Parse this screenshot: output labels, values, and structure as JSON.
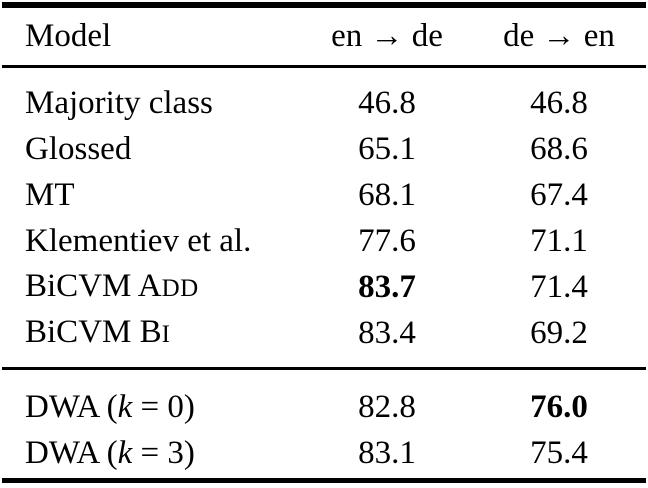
{
  "colors": {
    "background": "#ffffff",
    "text": "#000000",
    "rule": "#000000"
  },
  "table": {
    "columns": [
      "Model",
      "en → de",
      "de → en"
    ],
    "sections": [
      {
        "name": "baselines",
        "rows": [
          {
            "model": [
              {
                "text": "Majority class"
              }
            ],
            "cells": [
              {
                "text": "46.8",
                "bold": false
              },
              {
                "text": "46.8",
                "bold": false
              }
            ]
          },
          {
            "model": [
              {
                "text": "Glossed"
              }
            ],
            "cells": [
              {
                "text": "65.1",
                "bold": false
              },
              {
                "text": "68.6",
                "bold": false
              }
            ]
          },
          {
            "model": [
              {
                "text": "MT"
              }
            ],
            "cells": [
              {
                "text": "68.1",
                "bold": false
              },
              {
                "text": "67.4",
                "bold": false
              }
            ]
          },
          {
            "model": [
              {
                "text": "Klementiev et al."
              }
            ],
            "cells": [
              {
                "text": "77.6",
                "bold": false
              },
              {
                "text": "71.1",
                "bold": false
              }
            ]
          },
          {
            "model": [
              {
                "text": "BiCVM A"
              },
              {
                "text": "DD",
                "style": "smallcaps"
              }
            ],
            "cells": [
              {
                "text": "83.7",
                "bold": true
              },
              {
                "text": "71.4",
                "bold": false
              }
            ]
          },
          {
            "model": [
              {
                "text": "BiCVM B"
              },
              {
                "text": "I",
                "style": "smallcaps"
              }
            ],
            "cells": [
              {
                "text": "83.4",
                "bold": false
              },
              {
                "text": "69.2",
                "bold": false
              }
            ]
          }
        ]
      },
      {
        "name": "dwa",
        "rows": [
          {
            "model": [
              {
                "text": "DWA ("
              },
              {
                "text": "k",
                "style": "italic"
              },
              {
                "text": " = 0)"
              }
            ],
            "cells": [
              {
                "text": "82.8",
                "bold": false
              },
              {
                "text": "76.0",
                "bold": true
              }
            ]
          },
          {
            "model": [
              {
                "text": "DWA ("
              },
              {
                "text": "k",
                "style": "italic"
              },
              {
                "text": " = 3)"
              }
            ],
            "cells": [
              {
                "text": "83.1",
                "bold": false
              },
              {
                "text": "75.4",
                "bold": false
              }
            ]
          }
        ]
      }
    ]
  }
}
